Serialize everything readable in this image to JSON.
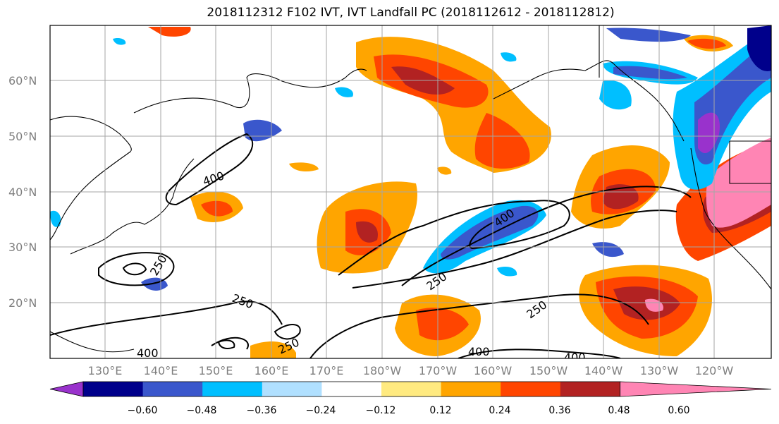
{
  "title": "2018112312 F102 IVT, IVT Landfall PC (2018112612 - 2018112812)",
  "map": {
    "lat_labels": [
      "60°N",
      "50°N",
      "40°N",
      "30°N",
      "20°N"
    ],
    "lon_labels": [
      "130°E",
      "140°E",
      "150°E",
      "160°E",
      "170°E",
      "180°W",
      "170°W",
      "160°W",
      "150°W",
      "140°W",
      "130°W",
      "120°W"
    ],
    "contour_labels": [
      "400",
      "250",
      "400",
      "250",
      "250",
      "250",
      "250",
      "400",
      "400",
      "400"
    ],
    "gridlines": true
  },
  "colorbar": {
    "ticks": [
      "−0.60",
      "−0.48",
      "−0.36",
      "−0.24",
      "−0.12",
      "0.12",
      "0.24",
      "0.36",
      "0.48",
      "0.60"
    ],
    "colors": [
      "#9932cc",
      "#00008b",
      "#3a57cc",
      "#00bfff",
      "#b0e0ff",
      "#ffffff",
      "#ffea80",
      "#ffa500",
      "#ff4500",
      "#b22222",
      "#ff85b4"
    ]
  }
}
